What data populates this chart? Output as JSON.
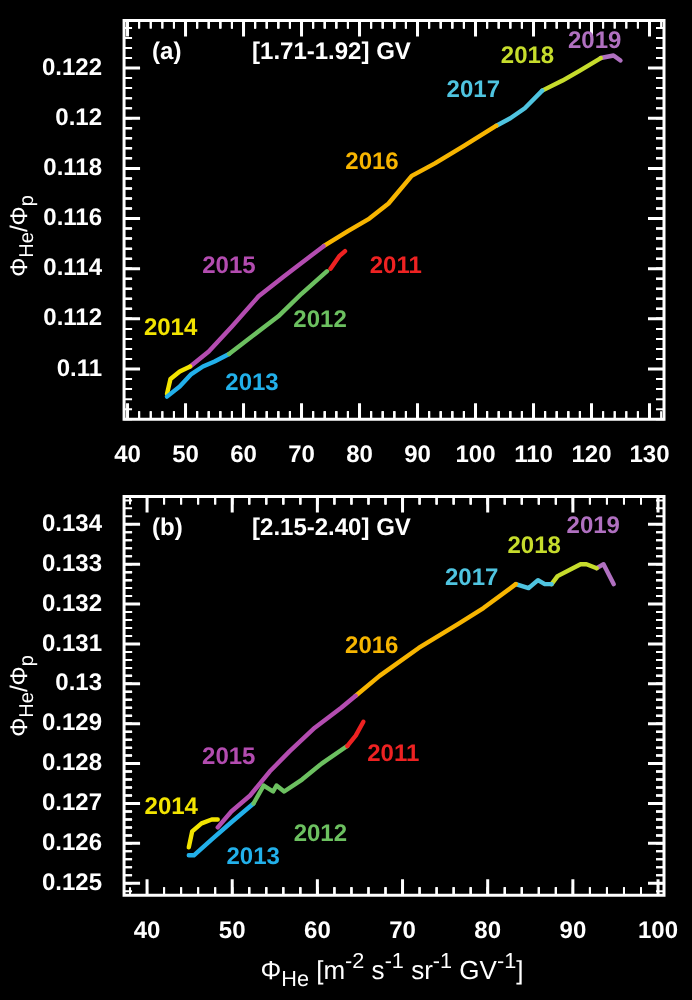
{
  "chart_data": [
    {
      "type": "line",
      "title": "(a)",
      "subtitle": "[1.71-1.92] GV",
      "ylabel": "Φ$_{He}$/Φ$_{p}$",
      "xlim": [
        39.4,
        132.5
      ],
      "xticks": [
        40,
        50,
        60,
        70,
        80,
        90,
        100,
        110,
        120,
        130
      ],
      "ylim": [
        0.108,
        0.1239
      ],
      "yticks": [
        0.11,
        0.112,
        0.114,
        0.116,
        0.118,
        0.12,
        0.122
      ],
      "series": [
        {
          "name": "2011",
          "color": "#ee2222",
          "x": [
            75,
            76.5,
            77.5
          ],
          "values": [
            0.114,
            0.1145,
            0.1147
          ]
        },
        {
          "name": "2012",
          "color": "#6cc060",
          "x": [
            57.5,
            62,
            66,
            70,
            74.4
          ],
          "values": [
            0.1106,
            0.1114,
            0.1121,
            0.113,
            0.1139
          ]
        },
        {
          "name": "2013",
          "color": "#22b0ea",
          "x": [
            46.8,
            49,
            51,
            53,
            55,
            57.5
          ],
          "values": [
            0.1089,
            0.1093,
            0.1098,
            0.1101,
            0.1103,
            0.1106
          ]
        },
        {
          "name": "2014",
          "color": "#f2e400",
          "x": [
            46.8,
            47.4,
            49,
            50.8
          ],
          "values": [
            0.109,
            0.1096,
            0.1099,
            0.1101
          ]
        },
        {
          "name": "2015",
          "color": "#b34cb0",
          "x": [
            50.8,
            54,
            58,
            62.6,
            67,
            73.8
          ],
          "values": [
            0.1101,
            0.1107,
            0.1117,
            0.1129,
            0.1137,
            0.1149
          ]
        },
        {
          "name": "2016",
          "color": "#f7b500",
          "x": [
            73.8,
            78,
            81.7,
            85,
            89,
            93,
            98,
            103.6
          ],
          "values": [
            0.1149,
            0.1155,
            0.116,
            0.1166,
            0.1177,
            0.1182,
            0.1189,
            0.1197
          ]
        },
        {
          "name": "2017",
          "color": "#4fc4e0",
          "x": [
            103.6,
            106,
            108.5,
            111.5
          ],
          "values": [
            0.1197,
            0.12,
            0.1204,
            0.1211
          ]
        },
        {
          "name": "2018",
          "color": "#c6dc2c",
          "x": [
            111.5,
            115,
            118,
            121.6
          ],
          "values": [
            0.1211,
            0.1215,
            0.1219,
            0.1224
          ]
        },
        {
          "name": "2019",
          "color": "#b070c0",
          "x": [
            121.6,
            123.8,
            125
          ],
          "values": [
            0.1224,
            0.1225,
            0.1223
          ]
        }
      ]
    },
    {
      "type": "line",
      "title": "(b)",
      "subtitle": "[2.15-2.40] GV",
      "ylabel": "Φ$_{He}$/Φ$_{p}$",
      "xlabel": "Φ$_{He}$ [m$^{-2}$ s$^{-1}$ sr$^{-1}$ GV$^{-1}$]",
      "xlim": [
        37.3,
        100.7
      ],
      "xticks": [
        40,
        50,
        60,
        70,
        80,
        90,
        100
      ],
      "ylim": [
        0.1247,
        0.1347
      ],
      "yticks": [
        0.125,
        0.126,
        0.127,
        0.128,
        0.129,
        0.13,
        0.131,
        0.132,
        0.133,
        0.134
      ],
      "series": [
        {
          "name": "2011",
          "color": "#ee2222",
          "x": [
            63.5,
            64.5,
            65.4
          ],
          "values": [
            0.12844,
            0.1287,
            0.12905
          ]
        },
        {
          "name": "2012",
          "color": "#6cc060",
          "x": [
            52.5,
            53.7,
            54.8,
            55.2,
            56.1,
            58.2,
            60.5,
            63.5
          ],
          "values": [
            0.127,
            0.12745,
            0.1273,
            0.12745,
            0.1273,
            0.1276,
            0.128,
            0.12844
          ]
        },
        {
          "name": "2013",
          "color": "#22b0ea",
          "x": [
            44.9,
            45.5,
            47.6,
            49.9,
            52.5
          ],
          "values": [
            0.1257,
            0.1257,
            0.1261,
            0.12653,
            0.127
          ]
        },
        {
          "name": "2014",
          "color": "#f2e400",
          "x": [
            44.9,
            45.3,
            46.4,
            47.6,
            48.3
          ],
          "values": [
            0.1259,
            0.1263,
            0.1265,
            0.1266,
            0.1266
          ]
        },
        {
          "name": "2015",
          "color": "#b34cb0",
          "x": [
            48.3,
            49.9,
            52.1,
            54.4,
            56.7,
            59.7,
            62.8,
            64.5
          ],
          "values": [
            0.1264,
            0.1268,
            0.1272,
            0.1278,
            0.1283,
            0.1289,
            0.1294,
            0.1297
          ]
        },
        {
          "name": "2016",
          "color": "#f7b500",
          "x": [
            64.5,
            67.3,
            71.9,
            76.5,
            79.5,
            83.3
          ],
          "values": [
            0.1297,
            0.1302,
            0.1309,
            0.1315,
            0.1319,
            0.1325
          ]
        },
        {
          "name": "2017",
          "color": "#4fc4e0",
          "x": [
            83.3,
            84.8,
            85.9,
            86.7,
            87.5
          ],
          "values": [
            0.1325,
            0.1324,
            0.1326,
            0.1325,
            0.1325
          ]
        },
        {
          "name": "2018",
          "color": "#c6dc2c",
          "x": [
            87.5,
            88.2,
            90.9,
            91.6,
            92.8
          ],
          "values": [
            0.1325,
            0.1327,
            0.133,
            0.133,
            0.1329
          ]
        },
        {
          "name": "2019",
          "color": "#b070c0",
          "x": [
            92.8,
            93.6,
            94.8
          ],
          "values": [
            0.1329,
            0.133,
            0.1325
          ]
        }
      ]
    }
  ]
}
